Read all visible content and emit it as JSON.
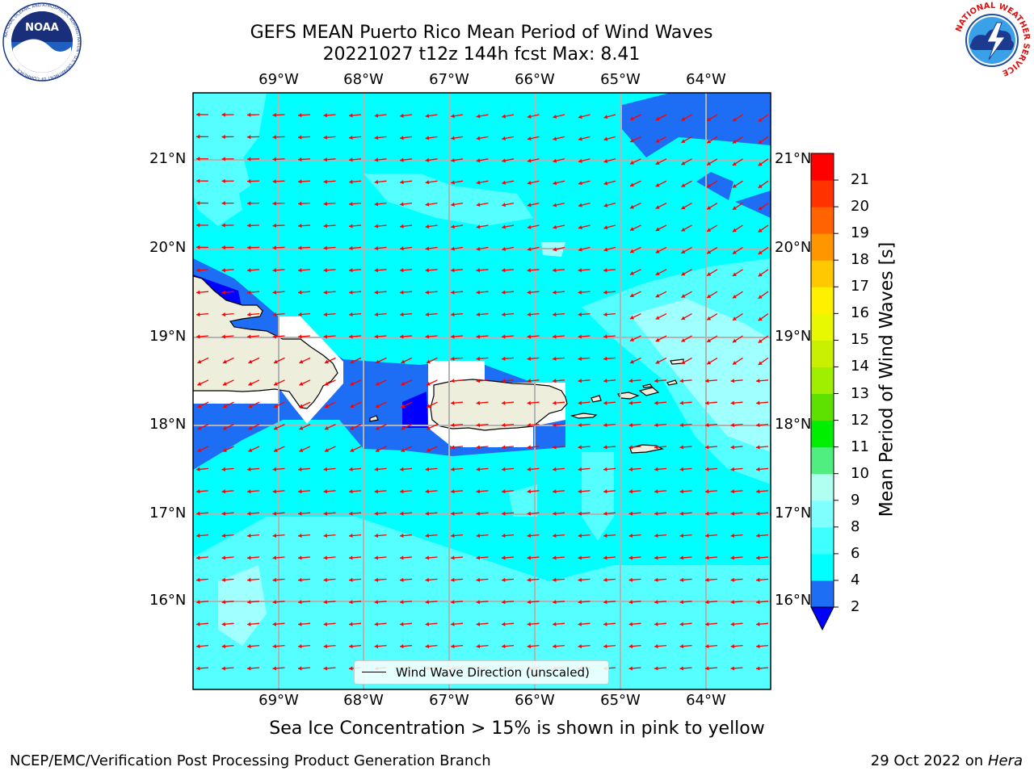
{
  "title": {
    "line1": "GEFS MEAN Puerto Rico Mean Period of Wind Waves",
    "line2": "20221027 t12z 144h fcst   Max: 8.41"
  },
  "logos": {
    "left": "noaa-logo",
    "right": "nws-logo",
    "left_text": "NOAA",
    "left_ring_text": "NATIONAL OCEANIC AND ATMOSPHERIC ADMINISTRATION · U.S. DEPARTMENT OF COMMERCE",
    "right_ring_text": "NATIONAL WEATHER SERVICE"
  },
  "axes": {
    "x_labels": [
      "69°W",
      "68°W",
      "67°W",
      "66°W",
      "65°W",
      "64°W"
    ],
    "y_labels": [
      "21°N",
      "20°N",
      "19°N",
      "18°N",
      "17°N",
      "16°N"
    ]
  },
  "legend": {
    "label": "Wind Wave Direction (unscaled)",
    "line_color": "#000000"
  },
  "colorbar": {
    "label": "Mean Period of Wind Waves [s]",
    "ticks": [
      "2",
      "4",
      "6",
      "8",
      "9",
      "10",
      "11",
      "12",
      "13",
      "14",
      "15",
      "16",
      "17",
      "18",
      "19",
      "20",
      "21"
    ],
    "colors": [
      "#1e6ef5",
      "#00ffff",
      "#40ffff",
      "#80ffff",
      "#b0fff0",
      "#50ee80",
      "#00ee00",
      "#5ee000",
      "#a0ee00",
      "#c8f000",
      "#e8f800",
      "#fff000",
      "#ffc800",
      "#ff9600",
      "#ff6400",
      "#ff3200",
      "#ff0000"
    ],
    "extend_color": "#0000ff"
  },
  "map_colors": {
    "ocean_main": "#00ffff",
    "ocean_light": "#55ffff",
    "ocean_lighter": "#a0ffff",
    "ocean_blue": "#1e6ef5",
    "ocean_deep": "#0000ff",
    "land": "#eeeedd",
    "arrow": "#ff0000"
  },
  "subtitle": "Sea Ice Concentration > 15% is shown in pink to yellow",
  "footer": {
    "left": "NCEP/EMC/Verification Post Processing Product Generation Branch",
    "right_prefix": "29 Oct 2022 on ",
    "right_italic": "Hera"
  }
}
